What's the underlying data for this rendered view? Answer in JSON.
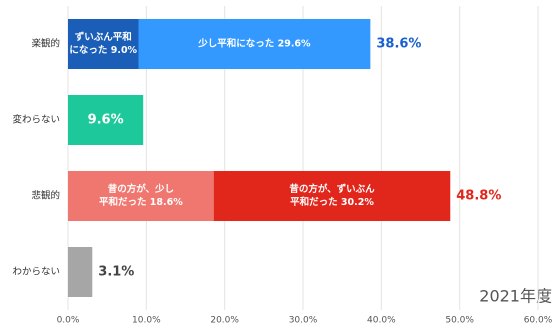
{
  "chart_data": {
    "type": "stacked_barh",
    "categories": [
      "楽観的",
      "変わらない",
      "悲観的",
      "わからない"
    ],
    "series": [
      {
        "color": "#1a5eb8",
        "values": [
          9.0,
          null,
          null,
          null
        ],
        "value_labels": [
          [
            "ずいぶん平和",
            "になった 9.0%"
          ],
          null,
          null,
          null
        ]
      },
      {
        "color": "#3399ff",
        "values": [
          29.6,
          null,
          null,
          null
        ],
        "value_labels": [
          [
            "少し平和になった 29.6%"
          ],
          null,
          null,
          null
        ]
      },
      {
        "color": "#1dc99a",
        "values": [
          null,
          9.6,
          null,
          null
        ]
      },
      {
        "color": "#f0776f",
        "values": [
          null,
          null,
          18.6,
          null
        ],
        "value_labels": [
          null,
          null,
          [
            "昔の方が、少し",
            "平和だった 18.6%"
          ],
          null
        ]
      },
      {
        "color": "#e1261c",
        "values": [
          null,
          null,
          30.2,
          null
        ],
        "value_labels": [
          null,
          null,
          [
            "昔の方が、ずいぶん",
            "平和だった 30.2%"
          ],
          null
        ]
      },
      {
        "color": "#a6a6a6",
        "values": [
          null,
          null,
          null,
          3.1
        ]
      }
    ],
    "totals": [
      38.6,
      9.6,
      48.8,
      3.1
    ],
    "total_labels": [
      "38.6%",
      "9.6%",
      "48.8%",
      "3.1%"
    ],
    "total_label_colors": [
      "#1a5fd0",
      "#ffffff",
      "#e1261c",
      "#444444"
    ],
    "total_label_positions": [
      "outside",
      "inside",
      "outside",
      "outside"
    ],
    "xlim": [
      0,
      60
    ],
    "xticks": [
      {
        "value": 0,
        "label": "0.0%"
      },
      {
        "value": 10,
        "label": "10.0%"
      },
      {
        "value": 20,
        "label": "20.0%"
      },
      {
        "value": 30,
        "label": "30.0%"
      },
      {
        "value": 40,
        "label": "40.0%"
      },
      {
        "value": 50,
        "label": "50.0%"
      },
      {
        "value": 60,
        "label": "60.0%"
      }
    ],
    "grid": true,
    "annotation": "2021年度"
  }
}
